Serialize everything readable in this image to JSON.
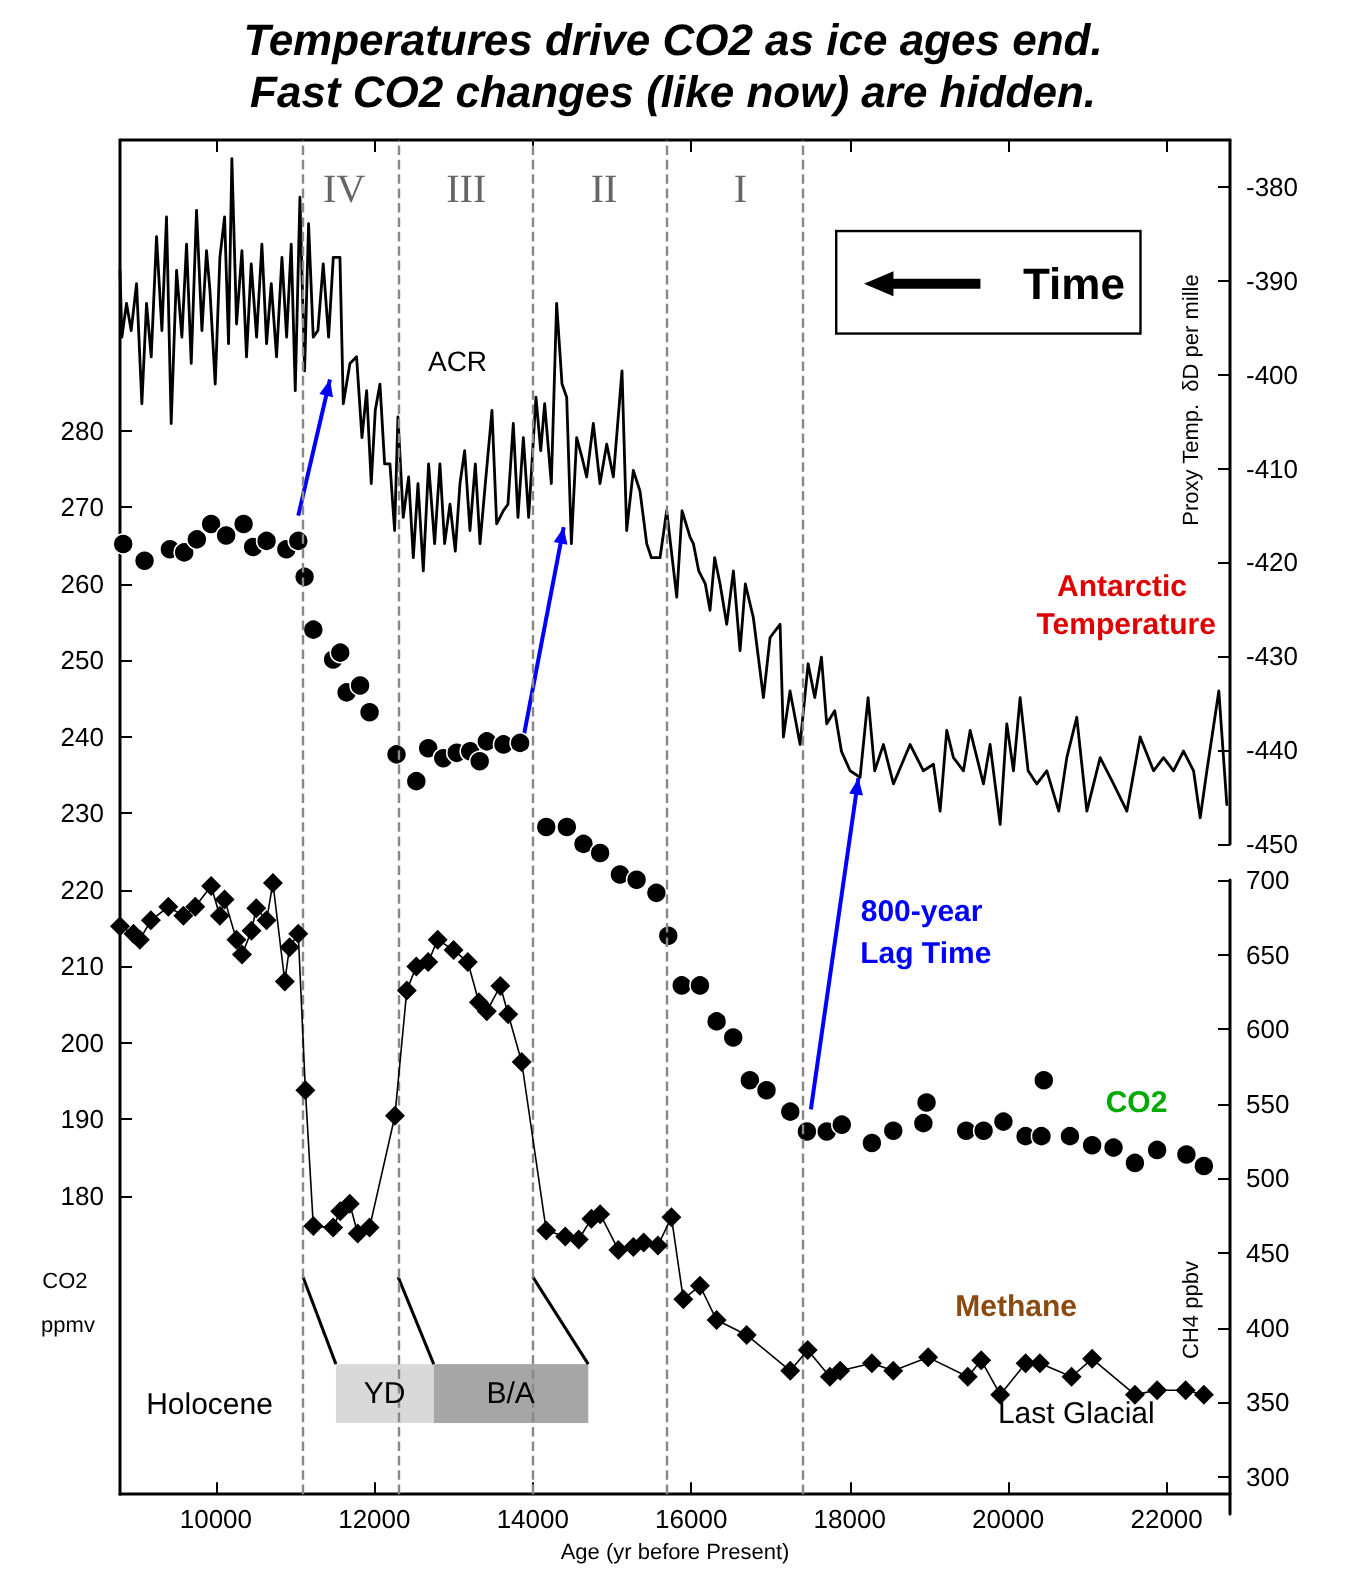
{
  "chart_data": {
    "type": "line",
    "title": "Temperatures drive CO2 as ice ages end.",
    "subtitle": "Fast CO2 changes (like now) are hidden.",
    "xlabel": "Age (yr before Present)",
    "ylabel": "CO2 ppmv",
    "y2label": "Proxy Temp.  δD per mille",
    "y3label": "CH4 ppbv",
    "xlim": [
      8790,
      22800
    ],
    "xticks": [
      10000,
      12000,
      14000,
      16000,
      18000,
      20000,
      22000
    ],
    "ylim": [
      141,
      318
    ],
    "yticks": [
      180,
      190,
      200,
      210,
      220,
      230,
      240,
      250,
      260,
      270,
      280
    ],
    "y2lim": [
      -450,
      -375
    ],
    "y2ticks": [
      -450,
      -440,
      -430,
      -420,
      -410,
      -400,
      -390,
      -380
    ],
    "y3lim": [
      275,
      700
    ],
    "y3ticks": [
      300,
      350,
      400,
      450,
      500,
      550,
      600,
      650,
      700
    ],
    "grid": false,
    "series": [
      {
        "name": "Antarctic Temperature",
        "axis": "y2",
        "color": "#000000",
        "marker": "none",
        "line_style": "solid",
        "x": [
          8790,
          8814,
          8872,
          8931,
          8999,
          9066,
          9125,
          9184,
          9251,
          9319,
          9377,
          9436,
          9504,
          9571,
          9630,
          9689,
          9756,
          9824,
          9882,
          9925,
          9992,
          10051,
          10110,
          10160,
          10202,
          10261,
          10329,
          10387,
          10446,
          10514,
          10581,
          10640,
          10699,
          10766,
          10834,
          10893,
          10951,
          11002,
          11061,
          11120,
          11170,
          11229,
          11288,
          11355,
          11423,
          11482,
          11566,
          11608,
          11692,
          11776,
          11844,
          11903,
          11961,
          12012,
          12071,
          12130,
          12197,
          12256,
          12298,
          12365,
          12433,
          12492,
          12551,
          12618,
          12685,
          12761,
          12828,
          12887,
          12955,
          13022,
          13081,
          13140,
          13207,
          13275,
          13334,
          13401,
          13485,
          13544,
          13628,
          13687,
          13754,
          13813,
          13881,
          13948,
          14040,
          14100,
          14150,
          14234,
          14301,
          14369,
          14428,
          14487,
          14554,
          14621,
          14680,
          14764,
          14848,
          14933,
          15017,
          15126,
          15185,
          15269,
          15353,
          15438,
          15497,
          15606,
          15690,
          15817,
          15884,
          15985,
          16027,
          16094,
          16178,
          16237,
          16296,
          16364,
          16448,
          16532,
          16616,
          16683,
          16784,
          16911,
          16995,
          17121,
          17163,
          17247,
          17374,
          17475,
          17559,
          17643,
          17710,
          17811,
          17895,
          18005,
          18131,
          18232,
          18316,
          18426,
          18552,
          18762,
          18930,
          19057,
          19141,
          19225,
          19309,
          19436,
          19520,
          19688,
          19772,
          19899,
          19983,
          20067,
          20151,
          20252,
          20362,
          20488,
          20639,
          20740,
          20866,
          20993,
          21161,
          21330,
          21498,
          21666,
          21835,
          21961,
          22087,
          22213,
          22340,
          22424,
          22508,
          22659,
          22760
        ],
        "values": [
          -388.9,
          -396.0,
          -392.4,
          -395.3,
          -390.3,
          -403.1,
          -392.4,
          -398.1,
          -385.3,
          -395.3,
          -383.2,
          -405.2,
          -388.9,
          -396.0,
          -386.1,
          -398.8,
          -382.5,
          -395.3,
          -386.8,
          -391.0,
          -401.0,
          -387.5,
          -383.2,
          -396.7,
          -377.0,
          -394.6,
          -386.8,
          -398.1,
          -388.2,
          -396.0,
          -386.1,
          -396.7,
          -390.3,
          -398.1,
          -387.5,
          -396.0,
          -386.1,
          -401.7,
          -381.1,
          -399.6,
          -383.9,
          -396.0,
          -395.3,
          -388.2,
          -396.0,
          -387.5,
          -387.5,
          -403.1,
          -398.8,
          -398.1,
          -406.7,
          -401.7,
          -411.6,
          -403.8,
          -401.0,
          -409.5,
          -409.5,
          -416.6,
          -404.5,
          -415.2,
          -410.9,
          -419.5,
          -411.6,
          -420.9,
          -409.5,
          -418.0,
          -409.5,
          -418.0,
          -413.8,
          -418.8,
          -411.6,
          -408.1,
          -416.6,
          -409.5,
          -418.0,
          -411.6,
          -403.8,
          -415.9,
          -414.5,
          -413.8,
          -405.2,
          -415.2,
          -406.7,
          -415.2,
          -402.4,
          -408.1,
          -403.1,
          -411.6,
          -392.4,
          -401.0,
          -402.4,
          -418.0,
          -406.7,
          -408.8,
          -410.9,
          -405.2,
          -411.6,
          -407.4,
          -410.9,
          -399.6,
          -416.6,
          -410.2,
          -412.4,
          -418.0,
          -419.5,
          -419.5,
          -414.5,
          -423.7,
          -414.5,
          -417.3,
          -418.0,
          -420.9,
          -422.3,
          -425.1,
          -419.5,
          -422.3,
          -426.6,
          -420.9,
          -429.4,
          -422.3,
          -425.9,
          -434.4,
          -428.0,
          -426.6,
          -438.6,
          -433.7,
          -439.4,
          -430.8,
          -434.4,
          -430.1,
          -437.2,
          -435.8,
          -440.1,
          -442.2,
          -442.9,
          -434.4,
          -442.2,
          -439.4,
          -443.6,
          -439.4,
          -442.2,
          -441.5,
          -446.5,
          -437.9,
          -440.8,
          -442.2,
          -437.9,
          -443.6,
          -439.4,
          -447.9,
          -437.2,
          -442.2,
          -434.4,
          -442.2,
          -443.6,
          -442.2,
          -446.5,
          -440.8,
          -436.5,
          -446.5,
          -440.8,
          -443.6,
          -446.5,
          -438.6,
          -442.2,
          -440.8,
          -442.2,
          -440.1,
          -442.2,
          -447.2,
          -442.2,
          -433.7,
          -445.8
        ]
      },
      {
        "name": "CO2",
        "type": "scatter",
        "axis": "y",
        "color": "#000000",
        "marker": "circle",
        "x": [
          8830,
          9100,
          9420,
          9600,
          9760,
          9940,
          10130,
          10350,
          10470,
          10640,
          10890,
          11040,
          11120,
          11230,
          11480,
          11570,
          11650,
          11820,
          11940,
          12280,
          12530,
          12680,
          12870,
          13040,
          13210,
          13330,
          13420,
          13630,
          13840,
          14170,
          14430,
          14640,
          14850,
          15100,
          15310,
          15560,
          15710,
          15880,
          16110,
          16320,
          16530,
          16740,
          16950,
          17250,
          17460,
          17710,
          17900,
          18280,
          18550,
          18930,
          18970,
          19470,
          19690,
          19940,
          20220,
          20420,
          20450,
          20780,
          21060,
          21330,
          21600,
          21880,
          22250,
          22470
        ],
        "values": [
          265.2,
          263.0,
          264.5,
          264.1,
          265.8,
          267.8,
          266.3,
          267.8,
          264.8,
          265.6,
          264.5,
          265.6,
          260.9,
          254.0,
          250.1,
          251.0,
          245.8,
          246.7,
          243.2,
          237.7,
          234.2,
          238.5,
          237.2,
          237.9,
          238.1,
          236.8,
          239.4,
          239.0,
          239.2,
          228.2,
          228.2,
          226.0,
          224.8,
          222.0,
          221.3,
          219.6,
          214.0,
          207.5,
          207.5,
          202.8,
          200.7,
          195.1,
          193.8,
          191.0,
          188.4,
          188.4,
          189.3,
          186.9,
          188.5,
          189.5,
          192.2,
          188.5,
          188.5,
          189.7,
          187.8,
          187.8,
          195.1,
          187.8,
          186.6,
          186.3,
          184.3,
          186.0,
          185.4,
          183.9
        ]
      },
      {
        "name": "Methane",
        "axis": "y3",
        "color": "#000000",
        "marker": "diamond",
        "line_style": "solid",
        "x": [
          8790,
          8960,
          9040,
          9180,
          9400,
          9590,
          9740,
          9940,
          10050,
          10110,
          10260,
          10330,
          10450,
          10510,
          10640,
          10720,
          10870,
          10930,
          11040,
          11130,
          11230,
          11480,
          11570,
          11690,
          11790,
          11940,
          12260,
          12410,
          12530,
          12680,
          12800,
          13000,
          13180,
          13320,
          13420,
          13590,
          13690,
          13860,
          14170,
          14410,
          14580,
          14740,
          14850,
          15080,
          15270,
          15400,
          15580,
          15750,
          15900,
          16110,
          16320,
          16700,
          17250,
          17470,
          17750,
          17880,
          18280,
          18550,
          18990,
          19490,
          19660,
          19900,
          20220,
          20400,
          20800,
          21060,
          21600,
          21880,
          22240,
          22470
        ],
        "values": [
          669,
          664,
          660,
          673,
          682,
          676,
          682,
          696,
          676,
          687,
          660,
          650,
          666,
          681,
          673,
          698,
          632,
          655,
          664,
          559,
          468,
          467,
          478,
          483,
          463,
          467,
          542,
          626,
          642,
          645,
          660,
          653,
          645,
          618,
          612,
          629,
          610,
          578,
          465,
          461,
          459,
          473,
          476,
          452,
          454,
          457,
          455,
          474,
          419,
          428,
          405,
          395,
          371,
          385,
          367,
          371,
          376,
          371,
          380,
          367,
          378,
          355,
          376,
          376,
          367,
          379,
          355,
          358,
          358,
          355
        ]
      }
    ],
    "ref_lines": [
      {
        "axis": "x",
        "value": 11100,
        "color": "#888888",
        "line_style": "dashed"
      },
      {
        "axis": "x",
        "value": 12300,
        "color": "#888888",
        "line_style": "dashed"
      },
      {
        "axis": "x",
        "value": 14000,
        "color": "#888888",
        "line_style": "dashed"
      },
      {
        "axis": "x",
        "value": 15700,
        "color": "#888888",
        "line_style": "dashed"
      },
      {
        "axis": "x",
        "value": 17400,
        "color": "#888888",
        "line_style": "dashed"
      }
    ],
    "annotations": [
      "IV",
      "III",
      "II",
      "I",
      "ACR",
      "Time",
      "800-year Lag Time",
      "Holocene",
      {
        "text": "YD",
        "x": 11100,
        "y": 169.4
      },
      "B/A",
      "Last Glacial"
    ]
  }
}
